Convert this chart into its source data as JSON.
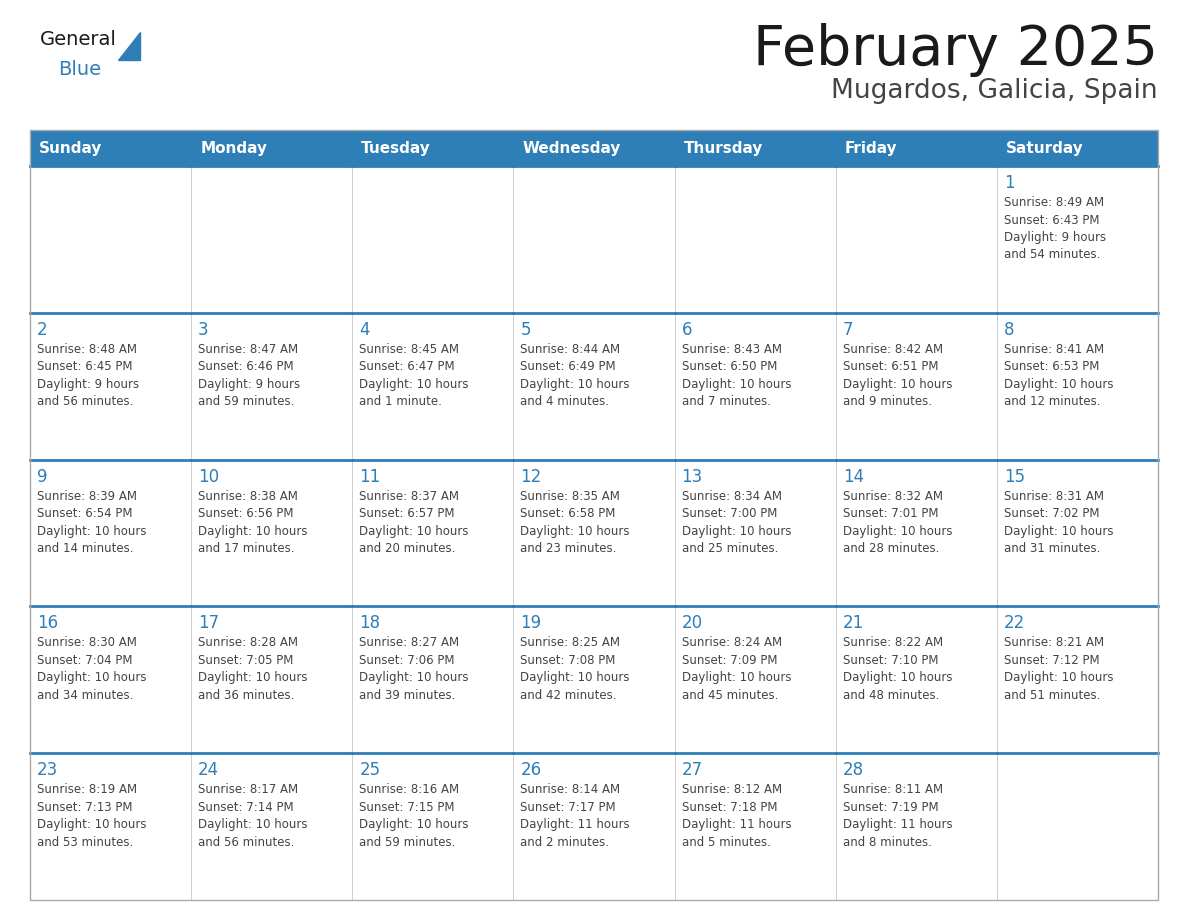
{
  "title": "February 2025",
  "subtitle": "Mugardos, Galicia, Spain",
  "days_of_week": [
    "Sunday",
    "Monday",
    "Tuesday",
    "Wednesday",
    "Thursday",
    "Friday",
    "Saturday"
  ],
  "header_bg": "#2E7EB8",
  "header_text": "#FFFFFF",
  "cell_bg": "#FFFFFF",
  "border_color": "#2E7EB8",
  "cell_border_color": "#CCCCCC",
  "text_color": "#444444",
  "day_num_color": "#2E7EB8",
  "title_color": "#1a1a1a",
  "subtitle_color": "#444444",
  "general_color": "#1a1a1a",
  "blue_color": "#2E7EB8",
  "calendar_data": [
    [
      null,
      null,
      null,
      null,
      null,
      null,
      {
        "day": 1,
        "sunrise": "8:49 AM",
        "sunset": "6:43 PM",
        "daylight": "9 hours\nand 54 minutes."
      }
    ],
    [
      {
        "day": 2,
        "sunrise": "8:48 AM",
        "sunset": "6:45 PM",
        "daylight": "9 hours\nand 56 minutes."
      },
      {
        "day": 3,
        "sunrise": "8:47 AM",
        "sunset": "6:46 PM",
        "daylight": "9 hours\nand 59 minutes."
      },
      {
        "day": 4,
        "sunrise": "8:45 AM",
        "sunset": "6:47 PM",
        "daylight": "10 hours\nand 1 minute."
      },
      {
        "day": 5,
        "sunrise": "8:44 AM",
        "sunset": "6:49 PM",
        "daylight": "10 hours\nand 4 minutes."
      },
      {
        "day": 6,
        "sunrise": "8:43 AM",
        "sunset": "6:50 PM",
        "daylight": "10 hours\nand 7 minutes."
      },
      {
        "day": 7,
        "sunrise": "8:42 AM",
        "sunset": "6:51 PM",
        "daylight": "10 hours\nand 9 minutes."
      },
      {
        "day": 8,
        "sunrise": "8:41 AM",
        "sunset": "6:53 PM",
        "daylight": "10 hours\nand 12 minutes."
      }
    ],
    [
      {
        "day": 9,
        "sunrise": "8:39 AM",
        "sunset": "6:54 PM",
        "daylight": "10 hours\nand 14 minutes."
      },
      {
        "day": 10,
        "sunrise": "8:38 AM",
        "sunset": "6:56 PM",
        "daylight": "10 hours\nand 17 minutes."
      },
      {
        "day": 11,
        "sunrise": "8:37 AM",
        "sunset": "6:57 PM",
        "daylight": "10 hours\nand 20 minutes."
      },
      {
        "day": 12,
        "sunrise": "8:35 AM",
        "sunset": "6:58 PM",
        "daylight": "10 hours\nand 23 minutes."
      },
      {
        "day": 13,
        "sunrise": "8:34 AM",
        "sunset": "7:00 PM",
        "daylight": "10 hours\nand 25 minutes."
      },
      {
        "day": 14,
        "sunrise": "8:32 AM",
        "sunset": "7:01 PM",
        "daylight": "10 hours\nand 28 minutes."
      },
      {
        "day": 15,
        "sunrise": "8:31 AM",
        "sunset": "7:02 PM",
        "daylight": "10 hours\nand 31 minutes."
      }
    ],
    [
      {
        "day": 16,
        "sunrise": "8:30 AM",
        "sunset": "7:04 PM",
        "daylight": "10 hours\nand 34 minutes."
      },
      {
        "day": 17,
        "sunrise": "8:28 AM",
        "sunset": "7:05 PM",
        "daylight": "10 hours\nand 36 minutes."
      },
      {
        "day": 18,
        "sunrise": "8:27 AM",
        "sunset": "7:06 PM",
        "daylight": "10 hours\nand 39 minutes."
      },
      {
        "day": 19,
        "sunrise": "8:25 AM",
        "sunset": "7:08 PM",
        "daylight": "10 hours\nand 42 minutes."
      },
      {
        "day": 20,
        "sunrise": "8:24 AM",
        "sunset": "7:09 PM",
        "daylight": "10 hours\nand 45 minutes."
      },
      {
        "day": 21,
        "sunrise": "8:22 AM",
        "sunset": "7:10 PM",
        "daylight": "10 hours\nand 48 minutes."
      },
      {
        "day": 22,
        "sunrise": "8:21 AM",
        "sunset": "7:12 PM",
        "daylight": "10 hours\nand 51 minutes."
      }
    ],
    [
      {
        "day": 23,
        "sunrise": "8:19 AM",
        "sunset": "7:13 PM",
        "daylight": "10 hours\nand 53 minutes."
      },
      {
        "day": 24,
        "sunrise": "8:17 AM",
        "sunset": "7:14 PM",
        "daylight": "10 hours\nand 56 minutes."
      },
      {
        "day": 25,
        "sunrise": "8:16 AM",
        "sunset": "7:15 PM",
        "daylight": "10 hours\nand 59 minutes."
      },
      {
        "day": 26,
        "sunrise": "8:14 AM",
        "sunset": "7:17 PM",
        "daylight": "11 hours\nand 2 minutes."
      },
      {
        "day": 27,
        "sunrise": "8:12 AM",
        "sunset": "7:18 PM",
        "daylight": "11 hours\nand 5 minutes."
      },
      {
        "day": 28,
        "sunrise": "8:11 AM",
        "sunset": "7:19 PM",
        "daylight": "11 hours\nand 8 minutes."
      },
      null
    ]
  ]
}
